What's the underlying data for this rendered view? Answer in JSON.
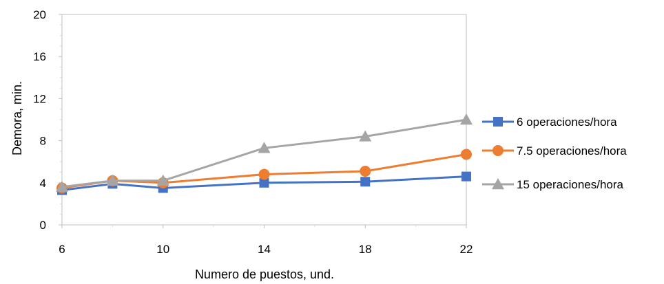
{
  "chart_data": {
    "type": "line",
    "title": "",
    "xlabel": "Numero de puestos, und.",
    "ylabel": "Demora, min.",
    "x": [
      6,
      8,
      10,
      14,
      18,
      22
    ],
    "x_ticks": [
      6,
      10,
      14,
      18,
      22
    ],
    "y_ticks": [
      0,
      4,
      8,
      12,
      16,
      20
    ],
    "xlim": [
      6,
      22
    ],
    "ylim": [
      0,
      20
    ],
    "grid": false,
    "legend_position": "right",
    "series": [
      {
        "name": "6 operaciones/hora",
        "values": [
          3.3,
          3.9,
          3.5,
          4.0,
          4.1,
          4.6
        ],
        "color": "#4472C4",
        "marker": "square"
      },
      {
        "name": "7.5 operaciones/hora",
        "values": [
          3.5,
          4.2,
          4.0,
          4.8,
          5.1,
          6.7
        ],
        "color": "#ED7D31",
        "marker": "circle"
      },
      {
        "name": "15 operaciones/hora",
        "values": [
          3.6,
          4.2,
          4.2,
          7.3,
          8.4,
          10.0
        ],
        "color": "#A5A5A5",
        "marker": "triangle"
      }
    ]
  }
}
